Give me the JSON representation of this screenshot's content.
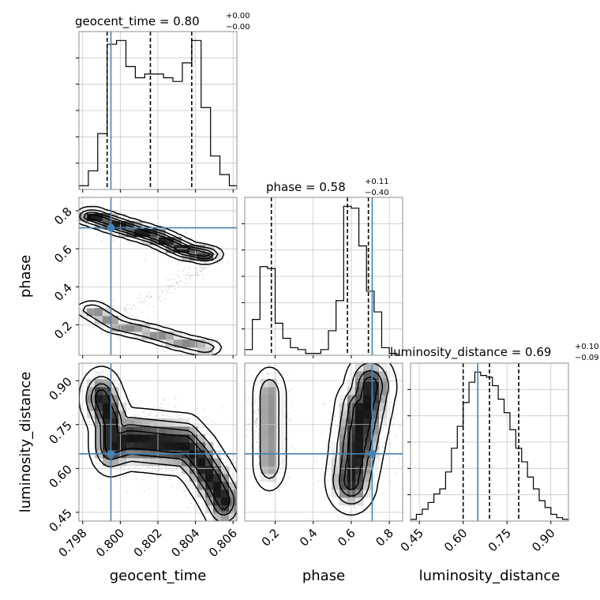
{
  "chart_data": {
    "type": "corner",
    "parameters": [
      "geocent_time",
      "phase",
      "luminosity_distance"
    ],
    "injected": {
      "geocent_time": 0.7995,
      "phase": 0.71,
      "luminosity_distance": 0.65
    },
    "colors": {
      "truth": "#4682b4",
      "hist": "#000000",
      "grid": "#c8c8c8",
      "scatter": "#9a9a9a"
    },
    "titles": [
      {
        "label": "geocent_time = 0.80",
        "sup": "+0.00",
        "sub": "−0.00"
      },
      {
        "label": "phase = 0.58",
        "sup": "+0.11",
        "sub": "−0.40"
      },
      {
        "label": "luminosity_distance = 0.69",
        "sup": "+0.10",
        "sub": "−0.09"
      }
    ],
    "axes": {
      "geocent_time": {
        "xlim": [
          0.7978,
          0.8062
        ],
        "ticks": [
          0.798,
          0.8,
          0.802,
          0.804,
          0.806
        ],
        "tick_labels": [
          "0.798",
          "0.800",
          "0.802",
          "0.804",
          "0.806"
        ]
      },
      "phase": {
        "xlim": [
          0.04,
          0.87
        ],
        "ticks": [
          0.2,
          0.4,
          0.6,
          0.8
        ],
        "tick_labels": [
          "0.2",
          "0.4",
          "0.6",
          "0.8"
        ],
        "ylim": [
          0.04,
          0.87
        ]
      },
      "luminosity_distance": {
        "xlim": [
          0.42,
          0.96
        ],
        "ticks": [
          0.45,
          0.6,
          0.75,
          0.9
        ],
        "tick_labels": [
          "0.45",
          "0.60",
          "0.75",
          "0.90"
        ],
        "ylim": [
          0.42,
          0.96
        ]
      }
    },
    "marginals": {
      "geocent_time": {
        "bin_edges": [
          0.7978,
          0.7983,
          0.7988,
          0.7993,
          0.7998,
          0.8003,
          0.8008,
          0.8013,
          0.8018,
          0.8023,
          0.8028,
          0.8033,
          0.8038,
          0.8043,
          0.8048,
          0.8053,
          0.8058,
          0.8062
        ],
        "counts": [
          1,
          5,
          15,
          39,
          40,
          33,
          30,
          31,
          31,
          30,
          29,
          34,
          40,
          22,
          9,
          4,
          1
        ],
        "quantiles": [
          0.7993,
          0.8016,
          0.8038
        ]
      },
      "phase": {
        "bin_edges": [
          0.04,
          0.08,
          0.12,
          0.16,
          0.2,
          0.24,
          0.28,
          0.32,
          0.36,
          0.4,
          0.44,
          0.48,
          0.52,
          0.56,
          0.6,
          0.64,
          0.68,
          0.72,
          0.76,
          0.8,
          0.84,
          0.87
        ],
        "counts": [
          3,
          19,
          47,
          46,
          17,
          9,
          4,
          3,
          1,
          1,
          3,
          13,
          29,
          79,
          78,
          58,
          34,
          23,
          4,
          1,
          0
        ],
        "quantiles": [
          0.18,
          0.58,
          0.69
        ]
      },
      "luminosity_distance": {
        "bin_edges": [
          0.42,
          0.44,
          0.46,
          0.48,
          0.5,
          0.52,
          0.54,
          0.56,
          0.58,
          0.6,
          0.62,
          0.64,
          0.66,
          0.68,
          0.7,
          0.72,
          0.74,
          0.76,
          0.78,
          0.8,
          0.82,
          0.84,
          0.86,
          0.88,
          0.9,
          0.92,
          0.94,
          0.96
        ],
        "counts": [
          1,
          4,
          7,
          11,
          16,
          19,
          29,
          43,
          56,
          70,
          82,
          88,
          86,
          85,
          80,
          72,
          64,
          54,
          43,
          35,
          26,
          19,
          12,
          8,
          4,
          2,
          1
        ],
        "quantiles": [
          0.6,
          0.69,
          0.79
        ]
      }
    },
    "joint": [
      {
        "x": "geocent_time",
        "y": "phase",
        "components": [
          {
            "points": [
              [
                0.7985,
                0.77
              ],
              [
                0.8,
                0.72
              ],
              [
                0.802,
                0.66
              ],
              [
                0.8035,
                0.59
              ],
              [
                0.8045,
                0.57
              ]
            ],
            "sx": 0.0005,
            "sy": 0.025,
            "weight": 1.0,
            "n": 650
          },
          {
            "points": [
              [
                0.7985,
                0.28
              ],
              [
                0.7998,
                0.2
              ],
              [
                0.8015,
                0.16
              ],
              [
                0.8032,
                0.11
              ],
              [
                0.8045,
                0.08
              ]
            ],
            "sx": 0.0005,
            "sy": 0.025,
            "weight": 0.65,
            "n": 380
          },
          {
            "points": [
              [
                0.7998,
                0.26
              ],
              [
                0.8018,
                0.36
              ],
              [
                0.8038,
                0.47
              ],
              [
                0.8052,
                0.53
              ]
            ],
            "sx": 0.0003,
            "sy": 0.015,
            "weight": 0.0,
            "n": 120
          }
        ]
      },
      {
        "x": "geocent_time",
        "y": "luminosity_distance",
        "components": [
          {
            "points": [
              [
                0.799,
                0.84
              ],
              [
                0.7995,
                0.76
              ],
              [
                0.7995,
                0.68
              ],
              [
                0.8005,
                0.7
              ],
              [
                0.802,
                0.69
              ],
              [
                0.8035,
                0.68
              ],
              [
                0.8042,
                0.63
              ],
              [
                0.805,
                0.55
              ],
              [
                0.8055,
                0.49
              ]
            ],
            "sx": 0.0006,
            "sy": 0.055,
            "weight": 1.0,
            "n": 1100
          }
        ]
      },
      {
        "x": "phase",
        "y": "luminosity_distance",
        "components": [
          {
            "points": [
              [
                0.17,
                0.72
              ],
              [
                0.17,
                0.85
              ],
              [
                0.17,
                0.62
              ]
            ],
            "sx": 0.05,
            "sy": 0.055,
            "weight": 0.65,
            "n": 450
          },
          {
            "points": [
              [
                0.62,
                0.67
              ],
              [
                0.65,
                0.8
              ],
              [
                0.6,
                0.56
              ],
              [
                0.7,
                0.88
              ]
            ],
            "sx": 0.07,
            "sy": 0.06,
            "weight": 1.0,
            "n": 750
          }
        ]
      }
    ]
  }
}
